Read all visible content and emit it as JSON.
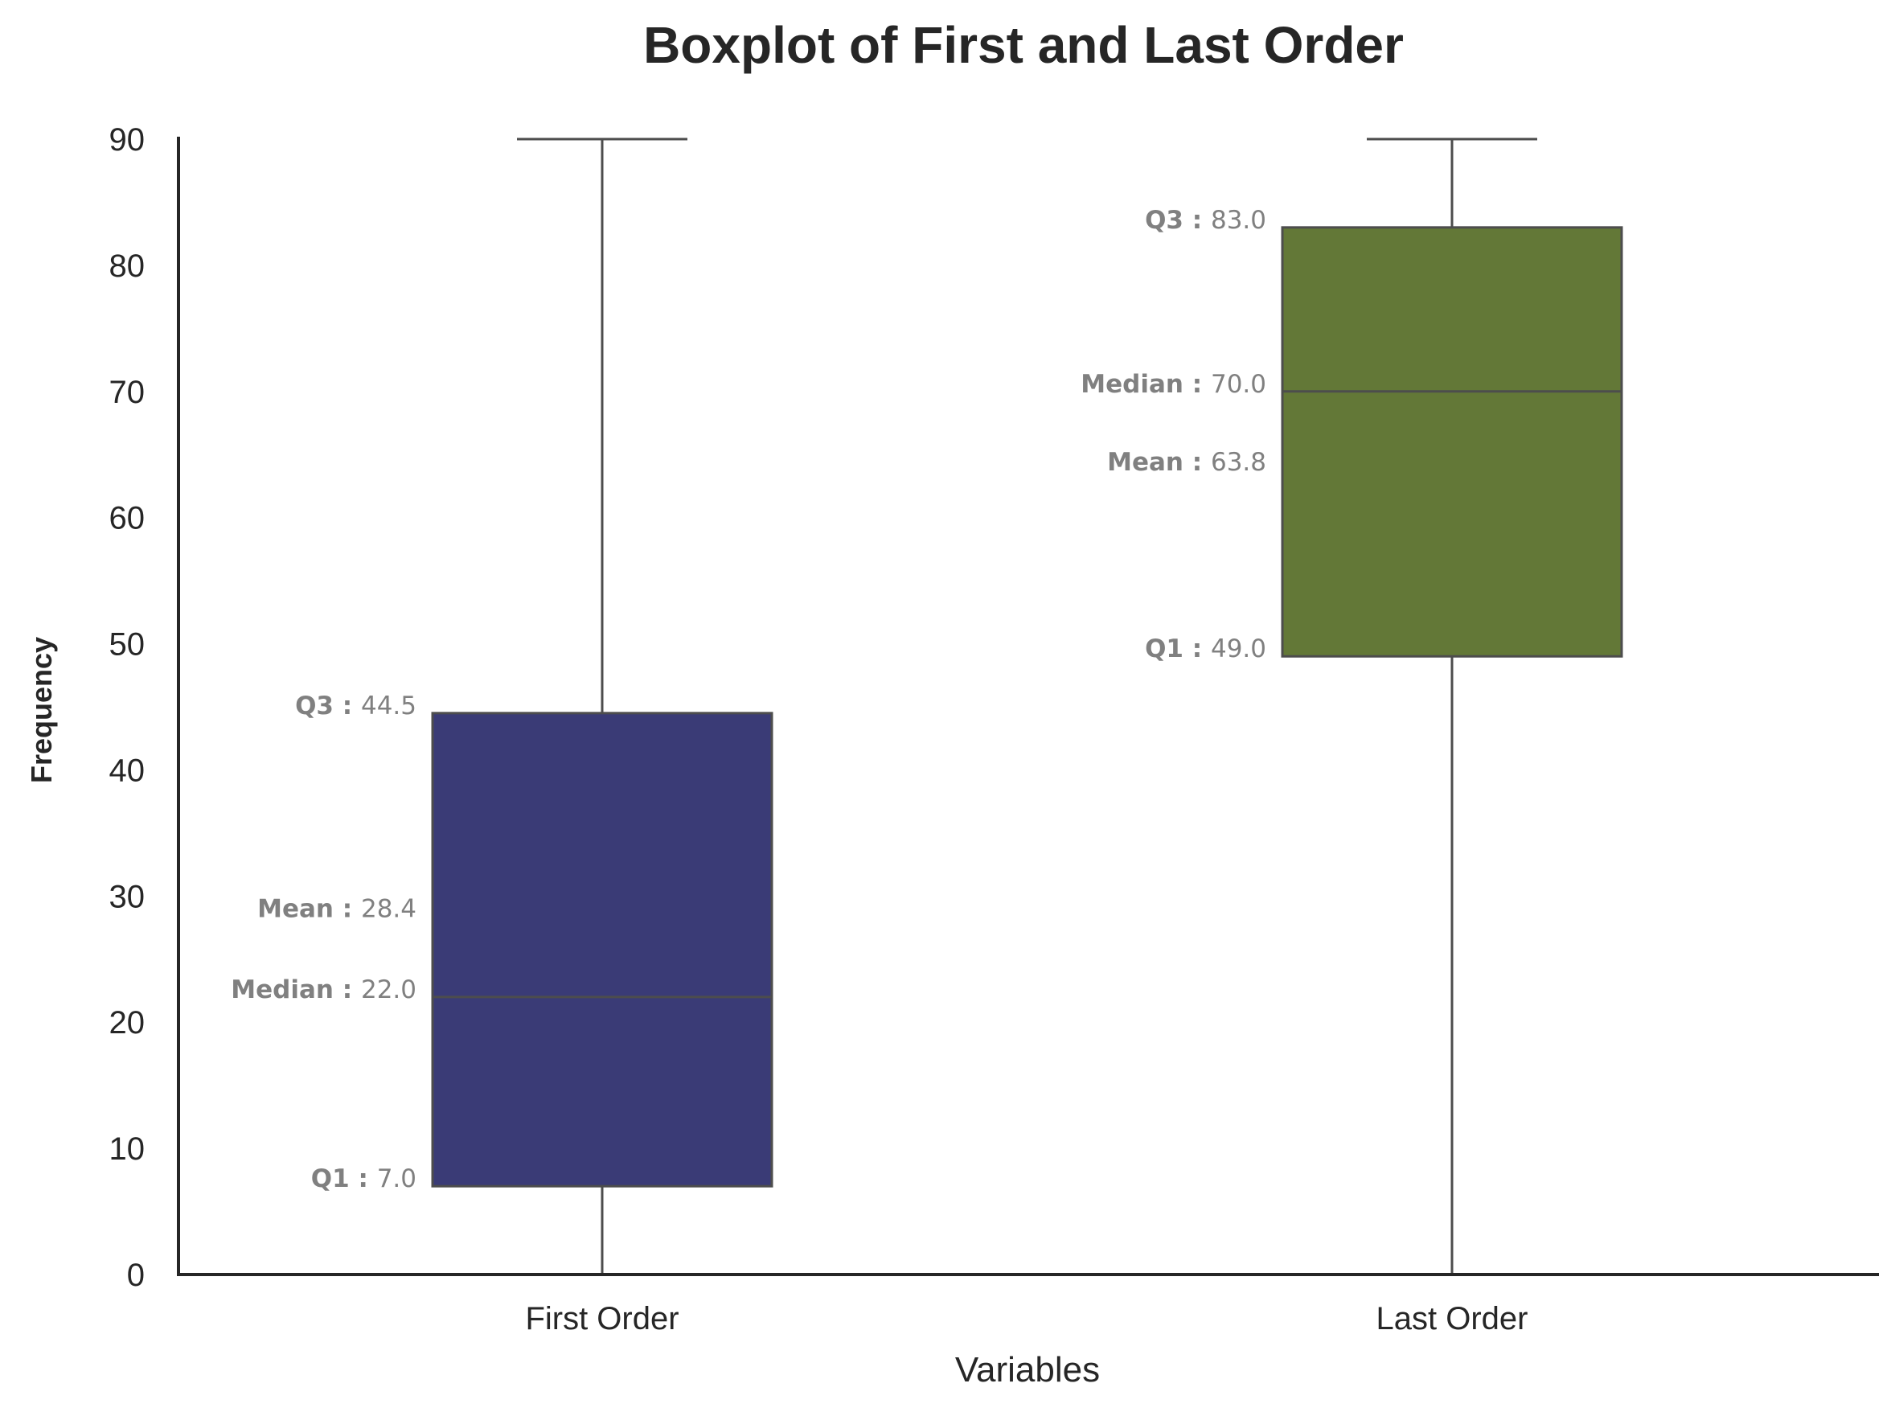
{
  "chart_data": {
    "type": "box",
    "title": "Boxplot of First and Last Order",
    "xlabel": "Variables",
    "ylabel": "Frequency",
    "ylim": [
      0,
      90
    ],
    "yticks": [
      0,
      10,
      20,
      30,
      40,
      50,
      60,
      70,
      80,
      90
    ],
    "grid": false,
    "categories": [
      "First Order",
      "Last Order"
    ],
    "boxes": [
      {
        "name": "First Order",
        "color": "#3a3b76",
        "whisker_low": 0,
        "q1": 7.0,
        "median": 22.0,
        "q3": 44.5,
        "whisker_high": 90,
        "mean": 28.4,
        "labels": {
          "q3": {
            "key": "Q3",
            "value": "44.5"
          },
          "mean": {
            "key": "Mean",
            "value": "28.4"
          },
          "median": {
            "key": "Median",
            "value": "22.0"
          },
          "q1": {
            "key": "Q1",
            "value": "7.0"
          }
        }
      },
      {
        "name": "Last Order",
        "color": "#637837",
        "whisker_low": 0,
        "q1": 49.0,
        "median": 70.0,
        "q3": 83.0,
        "whisker_high": 90,
        "mean": 63.8,
        "labels": {
          "q3": {
            "key": "Q3",
            "value": "83.0"
          },
          "median": {
            "key": "Median",
            "value": "70.0"
          },
          "mean": {
            "key": "Mean",
            "value": "63.8"
          },
          "q1": {
            "key": "Q1",
            "value": "49.0"
          }
        }
      }
    ]
  },
  "colors": {
    "axis": "#262626",
    "whisker": "#4d4d4d",
    "label": "#808080"
  }
}
